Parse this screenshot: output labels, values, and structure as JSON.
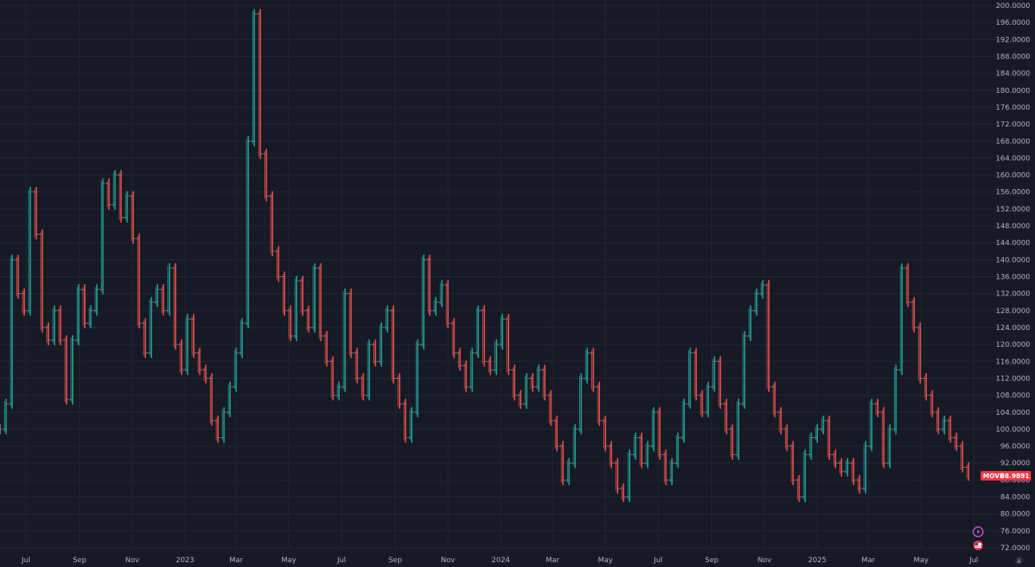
{
  "chart_data": {
    "type": "ohlc",
    "symbol": "MOVE",
    "last_value": "88.9891",
    "ylim": [
      72,
      200
    ],
    "y_ticks": [
      "200.0000",
      "196.0000",
      "192.0000",
      "188.0000",
      "184.0000",
      "180.0000",
      "176.0000",
      "172.0000",
      "168.0000",
      "164.0000",
      "160.0000",
      "156.0000",
      "152.0000",
      "148.0000",
      "144.0000",
      "140.0000",
      "136.0000",
      "132.0000",
      "128.0000",
      "124.0000",
      "120.0000",
      "116.0000",
      "112.0000",
      "108.0000",
      "104.0000",
      "100.0000",
      "96.0000",
      "92.0000",
      "88.0000",
      "84.0000",
      "80.0000",
      "76.0000",
      "72.0000"
    ],
    "x_ticks": [
      "Jul",
      "Sep",
      "Nov",
      "2023",
      "Mar",
      "May",
      "Jul",
      "Sep",
      "Nov",
      "2024",
      "Mar",
      "May",
      "Jul",
      "Sep",
      "Nov",
      "2025",
      "Mar",
      "May",
      "Jul"
    ],
    "x_range": [
      "2022-06-01",
      "2025-07-31"
    ],
    "x_tick_dates": [
      "2022-07-01",
      "2022-09-01",
      "2022-11-01",
      "2023-01-01",
      "2023-03-01",
      "2023-05-01",
      "2023-07-01",
      "2023-09-01",
      "2023-11-01",
      "2024-01-01",
      "2024-03-01",
      "2024-05-01",
      "2024-07-01",
      "2024-09-01",
      "2024-11-01",
      "2025-01-01",
      "2025-03-01",
      "2025-05-01",
      "2025-07-01"
    ],
    "series": [
      {
        "values": [
          [
            "2022-06-01",
            100
          ],
          [
            "2022-06-08",
            106
          ],
          [
            "2022-06-15",
            140
          ],
          [
            "2022-06-22",
            132
          ],
          [
            "2022-06-29",
            128
          ],
          [
            "2022-07-06",
            156
          ],
          [
            "2022-07-13",
            146
          ],
          [
            "2022-07-20",
            124
          ],
          [
            "2022-07-27",
            121
          ],
          [
            "2022-08-03",
            128
          ],
          [
            "2022-08-10",
            121
          ],
          [
            "2022-08-17",
            107
          ],
          [
            "2022-08-24",
            121
          ],
          [
            "2022-08-31",
            133
          ],
          [
            "2022-09-07",
            125
          ],
          [
            "2022-09-14",
            128
          ],
          [
            "2022-09-21",
            133
          ],
          [
            "2022-09-28",
            158
          ],
          [
            "2022-10-05",
            153
          ],
          [
            "2022-10-12",
            160
          ],
          [
            "2022-10-19",
            150
          ],
          [
            "2022-10-26",
            155
          ],
          [
            "2022-11-02",
            145
          ],
          [
            "2022-11-09",
            125
          ],
          [
            "2022-11-16",
            118
          ],
          [
            "2022-11-23",
            130
          ],
          [
            "2022-11-30",
            133
          ],
          [
            "2022-12-07",
            128
          ],
          [
            "2022-12-14",
            138
          ],
          [
            "2022-12-21",
            120
          ],
          [
            "2022-12-28",
            114
          ],
          [
            "2023-01-04",
            126
          ],
          [
            "2023-01-11",
            118
          ],
          [
            "2023-01-18",
            114
          ],
          [
            "2023-01-25",
            112
          ],
          [
            "2023-02-01",
            102
          ],
          [
            "2023-02-08",
            98
          ],
          [
            "2023-02-15",
            104
          ],
          [
            "2023-02-22",
            110
          ],
          [
            "2023-03-01",
            118
          ],
          [
            "2023-03-08",
            125
          ],
          [
            "2023-03-15",
            168
          ],
          [
            "2023-03-22",
            198
          ],
          [
            "2023-03-29",
            165
          ],
          [
            "2023-04-05",
            155
          ],
          [
            "2023-04-12",
            142
          ],
          [
            "2023-04-19",
            136
          ],
          [
            "2023-04-26",
            128
          ],
          [
            "2023-05-03",
            122
          ],
          [
            "2023-05-10",
            135
          ],
          [
            "2023-05-17",
            128
          ],
          [
            "2023-05-24",
            124
          ],
          [
            "2023-05-31",
            138
          ],
          [
            "2023-06-07",
            122
          ],
          [
            "2023-06-14",
            116
          ],
          [
            "2023-06-21",
            108
          ],
          [
            "2023-06-28",
            110
          ],
          [
            "2023-07-05",
            132
          ],
          [
            "2023-07-12",
            118
          ],
          [
            "2023-07-19",
            112
          ],
          [
            "2023-07-26",
            108
          ],
          [
            "2023-08-02",
            120
          ],
          [
            "2023-08-09",
            116
          ],
          [
            "2023-08-16",
            124
          ],
          [
            "2023-08-23",
            128
          ],
          [
            "2023-08-30",
            112
          ],
          [
            "2023-09-06",
            106
          ],
          [
            "2023-09-13",
            98
          ],
          [
            "2023-09-20",
            104
          ],
          [
            "2023-09-27",
            120
          ],
          [
            "2023-10-04",
            140
          ],
          [
            "2023-10-11",
            128
          ],
          [
            "2023-10-18",
            130
          ],
          [
            "2023-10-25",
            134
          ],
          [
            "2023-11-01",
            125
          ],
          [
            "2023-11-08",
            118
          ],
          [
            "2023-11-15",
            115
          ],
          [
            "2023-11-22",
            110
          ],
          [
            "2023-11-29",
            118
          ],
          [
            "2023-12-06",
            128
          ],
          [
            "2023-12-13",
            116
          ],
          [
            "2023-12-20",
            114
          ],
          [
            "2023-12-27",
            120
          ],
          [
            "2024-01-03",
            126
          ],
          [
            "2024-01-10",
            114
          ],
          [
            "2024-01-17",
            108
          ],
          [
            "2024-01-24",
            106
          ],
          [
            "2024-01-31",
            112
          ],
          [
            "2024-02-07",
            110
          ],
          [
            "2024-02-14",
            114
          ],
          [
            "2024-02-21",
            108
          ],
          [
            "2024-02-28",
            102
          ],
          [
            "2024-03-06",
            96
          ],
          [
            "2024-03-13",
            88
          ],
          [
            "2024-03-20",
            92
          ],
          [
            "2024-03-27",
            100
          ],
          [
            "2024-04-03",
            112
          ],
          [
            "2024-04-10",
            118
          ],
          [
            "2024-04-17",
            110
          ],
          [
            "2024-04-24",
            102
          ],
          [
            "2024-05-01",
            96
          ],
          [
            "2024-05-08",
            92
          ],
          [
            "2024-05-15",
            86
          ],
          [
            "2024-05-22",
            84
          ],
          [
            "2024-05-29",
            94
          ],
          [
            "2024-06-05",
            98
          ],
          [
            "2024-06-12",
            92
          ],
          [
            "2024-06-19",
            96
          ],
          [
            "2024-06-26",
            104
          ],
          [
            "2024-07-03",
            94
          ],
          [
            "2024-07-10",
            88
          ],
          [
            "2024-07-17",
            92
          ],
          [
            "2024-07-24",
            98
          ],
          [
            "2024-07-31",
            106
          ],
          [
            "2024-08-07",
            118
          ],
          [
            "2024-08-14",
            108
          ],
          [
            "2024-08-21",
            104
          ],
          [
            "2024-08-28",
            110
          ],
          [
            "2024-09-04",
            116
          ],
          [
            "2024-09-11",
            106
          ],
          [
            "2024-09-18",
            100
          ],
          [
            "2024-09-25",
            94
          ],
          [
            "2024-10-02",
            106
          ],
          [
            "2024-10-09",
            122
          ],
          [
            "2024-10-16",
            128
          ],
          [
            "2024-10-23",
            132
          ],
          [
            "2024-10-30",
            134
          ],
          [
            "2024-11-06",
            110
          ],
          [
            "2024-11-13",
            104
          ],
          [
            "2024-11-20",
            100
          ],
          [
            "2024-11-27",
            96
          ],
          [
            "2024-12-04",
            88
          ],
          [
            "2024-12-11",
            84
          ],
          [
            "2024-12-18",
            94
          ],
          [
            "2024-12-25",
            98
          ],
          [
            "2025-01-01",
            100
          ],
          [
            "2025-01-08",
            102
          ],
          [
            "2025-01-15",
            94
          ],
          [
            "2025-01-22",
            92
          ],
          [
            "2025-01-29",
            90
          ],
          [
            "2025-02-05",
            92
          ],
          [
            "2025-02-12",
            88
          ],
          [
            "2025-02-19",
            86
          ],
          [
            "2025-02-26",
            96
          ],
          [
            "2025-03-05",
            106
          ],
          [
            "2025-03-12",
            104
          ],
          [
            "2025-03-19",
            92
          ],
          [
            "2025-03-26",
            100
          ],
          [
            "2025-04-02",
            114
          ],
          [
            "2025-04-09",
            138
          ],
          [
            "2025-04-16",
            130
          ],
          [
            "2025-04-23",
            124
          ],
          [
            "2025-04-30",
            112
          ],
          [
            "2025-05-07",
            108
          ],
          [
            "2025-05-14",
            104
          ],
          [
            "2025-05-21",
            100
          ],
          [
            "2025-05-28",
            102
          ],
          [
            "2025-06-04",
            98
          ],
          [
            "2025-06-11",
            96
          ],
          [
            "2025-06-18",
            91
          ],
          [
            "2025-06-25",
            89
          ]
        ]
      }
    ],
    "colors": {
      "up": "#26a69a",
      "down": "#ef5350",
      "neutral": "#8a8d96",
      "badge": "#f23645",
      "background": "#161a25",
      "grid": "#232735"
    },
    "grid": true,
    "price_axis": "right",
    "icons": [
      "lightning-icon",
      "flag-icon",
      "scale-mode-icon"
    ]
  }
}
